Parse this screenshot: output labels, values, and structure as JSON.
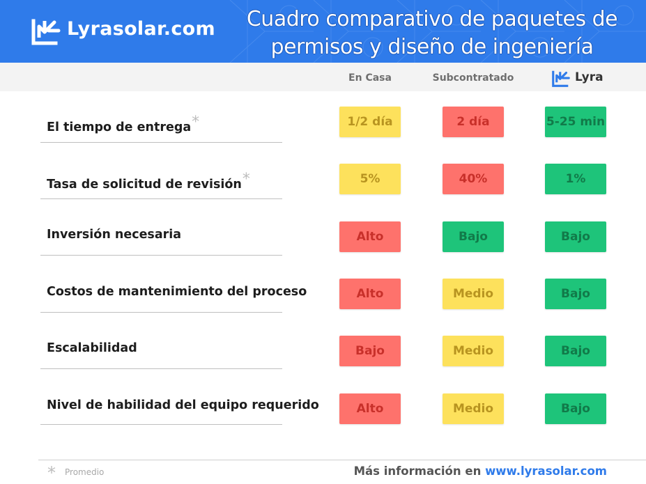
{
  "header": {
    "brand": "Lyrasolar.com",
    "title_line1": "Cuadro comparativo de paquetes de",
    "title_line2": "permisos y diseño de ingeniería",
    "color": "#2f7bea",
    "logo_icon": "lyra-logo-icon"
  },
  "columns": [
    {
      "label": "En Casa"
    },
    {
      "label": "Subcontratado"
    },
    {
      "label": "Lyra",
      "logo_icon": "lyra-logo-icon"
    }
  ],
  "rows": [
    {
      "label": "El tiempo de entrega",
      "asterisk": "*",
      "cells": [
        {
          "value": "1/2 día",
          "color": "yellow"
        },
        {
          "value": "2 día",
          "color": "red"
        },
        {
          "value": "5-25 min",
          "color": "green"
        }
      ]
    },
    {
      "label": "Tasa de solicitud de revisión",
      "asterisk": "*",
      "cells": [
        {
          "value": "5%",
          "color": "yellow"
        },
        {
          "value": "40%",
          "color": "red"
        },
        {
          "value": "1%",
          "color": "green"
        }
      ]
    },
    {
      "label": "Inversión necesaria",
      "cells": [
        {
          "value": "Alto",
          "color": "red"
        },
        {
          "value": "Bajo",
          "color": "green"
        },
        {
          "value": "Bajo",
          "color": "green"
        }
      ]
    },
    {
      "label": "Costos de mantenimiento del proceso",
      "cells": [
        {
          "value": "Alto",
          "color": "red"
        },
        {
          "value": "Medio",
          "color": "yellow"
        },
        {
          "value": "Bajo",
          "color": "green"
        }
      ]
    },
    {
      "label": "Escalabilidad",
      "cells": [
        {
          "value": "Bajo",
          "color": "red"
        },
        {
          "value": "Medio",
          "color": "yellow"
        },
        {
          "value": "Bajo",
          "color": "green"
        }
      ]
    },
    {
      "label": "Nivel de habilidad del equipo requerido",
      "cells": [
        {
          "value": "Alto",
          "color": "red"
        },
        {
          "value": "Medio",
          "color": "yellow"
        },
        {
          "value": "Bajo",
          "color": "green"
        }
      ]
    }
  ],
  "colors": {
    "yellow": "#fde15c",
    "red": "#fe726c",
    "green": "#1ec47a"
  },
  "footer": {
    "asterisk": "*",
    "note": "Promedio",
    "more_info_prefix": "Más información en",
    "more_info_link": "www.lyrasolar.com"
  }
}
